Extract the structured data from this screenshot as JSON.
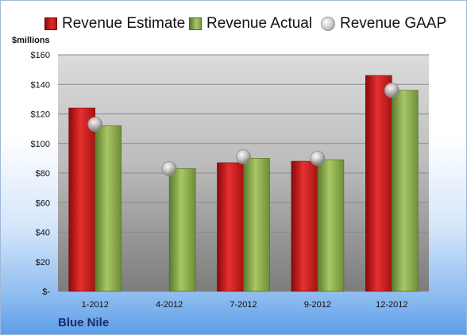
{
  "legend": {
    "estimate": "Revenue Estimate",
    "actual": "Revenue Actual",
    "gaap": "Revenue GAAP"
  },
  "unit_label": "$millions",
  "company": "Blue Nile",
  "colors": {
    "estimate": "#c81e1e",
    "actual": "#8fb04f",
    "gaap": "#c8c8c8"
  },
  "chart_data": {
    "type": "bar",
    "categories": [
      "1-2012",
      "4-2012",
      "7-2012",
      "9-2012",
      "12-2012"
    ],
    "series": [
      {
        "name": "Revenue Estimate",
        "values": [
          124,
          null,
          87,
          88,
          146
        ]
      },
      {
        "name": "Revenue Actual",
        "values": [
          112,
          83,
          90,
          89,
          136
        ]
      },
      {
        "name": "Revenue GAAP",
        "values": [
          113,
          83,
          91,
          90,
          136
        ],
        "marker": "sphere"
      }
    ],
    "ylim": [
      0,
      160
    ],
    "yticks": [
      0,
      20,
      40,
      60,
      80,
      100,
      120,
      140,
      160
    ],
    "ytick_labels": [
      "$-",
      "$20",
      "$40",
      "$60",
      "$80",
      "$100",
      "$120",
      "$140",
      "$160"
    ],
    "grid": true,
    "legend_position": "top"
  }
}
